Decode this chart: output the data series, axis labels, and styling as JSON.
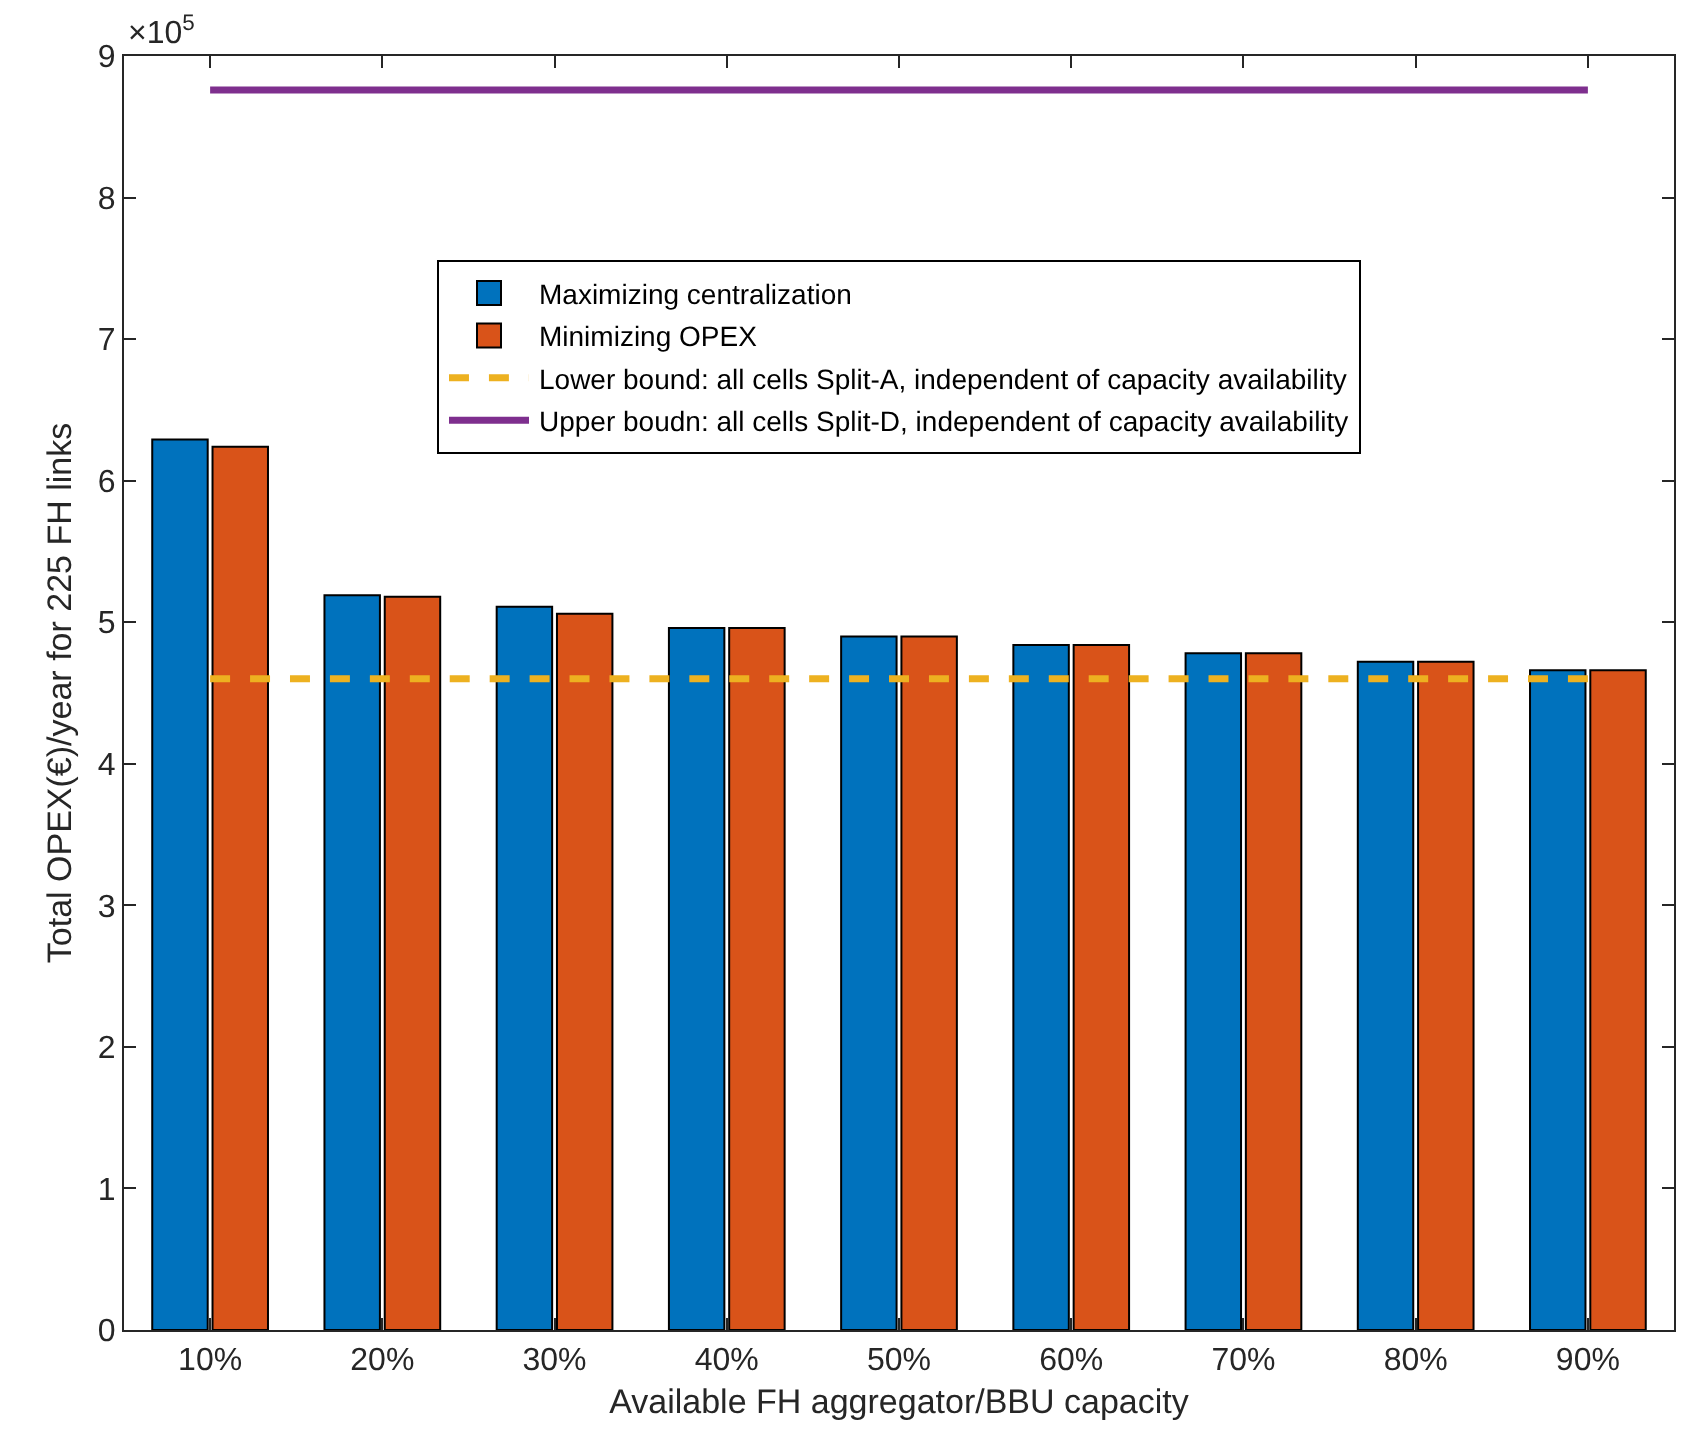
{
  "chart_data": {
    "type": "bar",
    "xlabel": "Available FH aggregator/BBU capacity",
    "ylabel": "Total OPEX(€)/year for 225 FH links",
    "categories": [
      "10%",
      "20%",
      "30%",
      "40%",
      "50%",
      "60%",
      "70%",
      "80%",
      "90%"
    ],
    "series": [
      {
        "name": "Maximizing centralization",
        "color": "#0072bd",
        "values": [
          6.29,
          5.19,
          5.11,
          4.96,
          4.9,
          4.84,
          4.78,
          4.72,
          4.66
        ]
      },
      {
        "name": "Minimizing OPEX",
        "color": "#d95319",
        "values": [
          6.24,
          5.18,
          5.06,
          4.96,
          4.9,
          4.84,
          4.78,
          4.72,
          4.66
        ]
      },
      {
        "name": "Lower bound: all cells Split-A, independent of capacity availability",
        "type": "line",
        "line_style": "dashed",
        "color": "#edb120",
        "values": [
          4.6,
          4.6,
          4.6,
          4.6,
          4.6,
          4.6,
          4.6,
          4.6,
          4.6
        ]
      },
      {
        "name": "Upper boudn: all cells Split-D, independent of capacity availability",
        "type": "line",
        "line_style": "solid",
        "color": "#7e2f8e",
        "values": [
          8.76,
          8.76,
          8.76,
          8.76,
          8.76,
          8.76,
          8.76,
          8.76,
          8.76
        ]
      }
    ],
    "ylim": [
      0,
      9
    ],
    "yticks": [
      0,
      1,
      2,
      3,
      4,
      5,
      6,
      7,
      8,
      9
    ],
    "grid": false,
    "legend": "top",
    "marker": "none",
    "annotations": [
      "×10$^{5}$"
    ]
  }
}
